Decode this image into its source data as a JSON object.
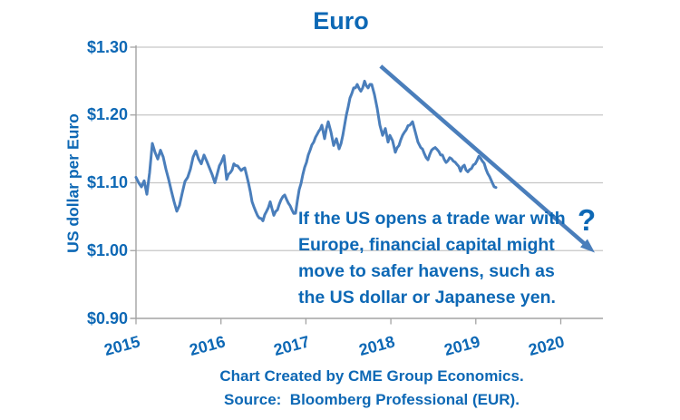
{
  "colors": {
    "text_blue": "#0d68b5",
    "series_blue": "#4a7ebb",
    "gridline_gray": "#c6c6c6",
    "axis_gray": "#a3a3a3"
  },
  "footer": {
    "line1": "Chart Created by CME Group Economics.",
    "line2": "Source:  Bloomberg Professional (EUR)."
  },
  "chart_data": {
    "type": "line",
    "title": "Euro",
    "xlabel": "",
    "ylabel": "US dollar per Euro",
    "grid": true,
    "legend": "none",
    "xlim": [
      2015,
      2020.5
    ],
    "ylim": [
      0.9,
      1.325
    ],
    "x_ticks": [
      2015,
      2016,
      2017,
      2018,
      2019,
      2020
    ],
    "x_tick_labels": [
      "2015",
      "2016",
      "2017",
      "2018",
      "2019",
      "2020"
    ],
    "y_ticks": [
      0.9,
      1.0,
      1.1,
      1.2,
      1.3
    ],
    "y_tick_labels": [
      "$0.90",
      "$1.00",
      "$1.10",
      "$1.20",
      "$1.30"
    ],
    "series": [
      {
        "name": "US dollar per Euro exchange rate",
        "points": [
          [
            2015.0,
            1.108
          ],
          [
            2015.032,
            1.1
          ],
          [
            2015.064,
            1.094
          ],
          [
            2015.096,
            1.103
          ],
          [
            2015.128,
            1.083
          ],
          [
            2015.16,
            1.115
          ],
          [
            2015.192,
            1.158
          ],
          [
            2015.224,
            1.145
          ],
          [
            2015.256,
            1.135
          ],
          [
            2015.288,
            1.148
          ],
          [
            2015.32,
            1.138
          ],
          [
            2015.352,
            1.12
          ],
          [
            2015.384,
            1.105
          ],
          [
            2015.416,
            1.088
          ],
          [
            2015.448,
            1.072
          ],
          [
            2015.48,
            1.058
          ],
          [
            2015.512,
            1.067
          ],
          [
            2015.544,
            1.085
          ],
          [
            2015.576,
            1.102
          ],
          [
            2015.608,
            1.108
          ],
          [
            2015.64,
            1.12
          ],
          [
            2015.672,
            1.138
          ],
          [
            2015.704,
            1.147
          ],
          [
            2015.736,
            1.135
          ],
          [
            2015.768,
            1.128
          ],
          [
            2015.8,
            1.141
          ],
          [
            2015.832,
            1.132
          ],
          [
            2015.864,
            1.122
          ],
          [
            2015.896,
            1.112
          ],
          [
            2015.928,
            1.1
          ],
          [
            2015.96,
            1.115
          ],
          [
            2016.003,
            1.13
          ],
          [
            2016.035,
            1.14
          ],
          [
            2016.067,
            1.105
          ],
          [
            2016.11,
            1.115
          ],
          [
            2016.152,
            1.128
          ],
          [
            2016.195,
            1.125
          ],
          [
            2016.238,
            1.118
          ],
          [
            2016.281,
            1.122
          ],
          [
            2016.323,
            1.1
          ],
          [
            2016.366,
            1.072
          ],
          [
            2016.409,
            1.058
          ],
          [
            2016.451,
            1.048
          ],
          [
            2016.494,
            1.044
          ],
          [
            2016.537,
            1.058
          ],
          [
            2016.58,
            1.072
          ],
          [
            2016.622,
            1.052
          ],
          [
            2016.665,
            1.06
          ],
          [
            2016.708,
            1.075
          ],
          [
            2016.75,
            1.082
          ],
          [
            2016.793,
            1.07
          ],
          [
            2016.836,
            1.06
          ],
          [
            2016.878,
            1.055
          ],
          [
            2016.921,
            1.09
          ],
          [
            2016.964,
            1.112
          ],
          [
            2017.006,
            1.13
          ],
          [
            2017.049,
            1.148
          ],
          [
            2017.092,
            1.16
          ],
          [
            2017.134,
            1.172
          ],
          [
            2017.188,
            1.185
          ],
          [
            2017.22,
            1.165
          ],
          [
            2017.263,
            1.19
          ],
          [
            2017.295,
            1.175
          ],
          [
            2017.327,
            1.155
          ],
          [
            2017.359,
            1.165
          ],
          [
            2017.391,
            1.15
          ],
          [
            2017.434,
            1.17
          ],
          [
            2017.476,
            1.2
          ],
          [
            2017.519,
            1.225
          ],
          [
            2017.562,
            1.24
          ],
          [
            2017.604,
            1.245
          ],
          [
            2017.647,
            1.235
          ],
          [
            2017.69,
            1.25
          ],
          [
            2017.732,
            1.24
          ],
          [
            2017.775,
            1.245
          ],
          [
            2017.807,
            1.23
          ],
          [
            2017.839,
            1.21
          ],
          [
            2017.871,
            1.185
          ],
          [
            2017.903,
            1.17
          ],
          [
            2017.935,
            1.18
          ],
          [
            2017.967,
            1.16
          ],
          [
            2017.988,
            1.17
          ],
          [
            2018.02,
            1.162
          ],
          [
            2018.052,
            1.145
          ],
          [
            2018.095,
            1.155
          ],
          [
            2018.138,
            1.17
          ],
          [
            2018.18,
            1.178
          ],
          [
            2018.223,
            1.185
          ],
          [
            2018.255,
            1.19
          ],
          [
            2018.287,
            1.175
          ],
          [
            2018.319,
            1.16
          ],
          [
            2018.351,
            1.152
          ],
          [
            2018.394,
            1.143
          ],
          [
            2018.437,
            1.134
          ],
          [
            2018.479,
            1.148
          ],
          [
            2018.522,
            1.152
          ],
          [
            2018.565,
            1.146
          ],
          [
            2018.607,
            1.141
          ],
          [
            2018.65,
            1.13
          ],
          [
            2018.693,
            1.137
          ],
          [
            2018.735,
            1.132
          ],
          [
            2018.778,
            1.127
          ],
          [
            2018.821,
            1.117
          ],
          [
            2018.864,
            1.126
          ],
          [
            2018.906,
            1.116
          ],
          [
            2018.949,
            1.121
          ],
          [
            2018.992,
            1.128
          ],
          [
            2019.035,
            1.139
          ],
          [
            2019.077,
            1.132
          ],
          [
            2019.12,
            1.12
          ],
          [
            2019.162,
            1.109
          ],
          [
            2019.194,
            1.1
          ],
          [
            2019.237,
            1.093
          ]
        ]
      }
    ],
    "annotations": {
      "note_lines": [
        "If the US opens a trade war with",
        "Europe, financial capital might",
        "move to safer havens, such as",
        "the US dollar or Japanese yen."
      ],
      "question_mark": "?",
      "trend_arrow": {
        "from": [
          2017.88,
          1.272
        ],
        "to": [
          2020.4,
          0.997
        ]
      }
    }
  }
}
